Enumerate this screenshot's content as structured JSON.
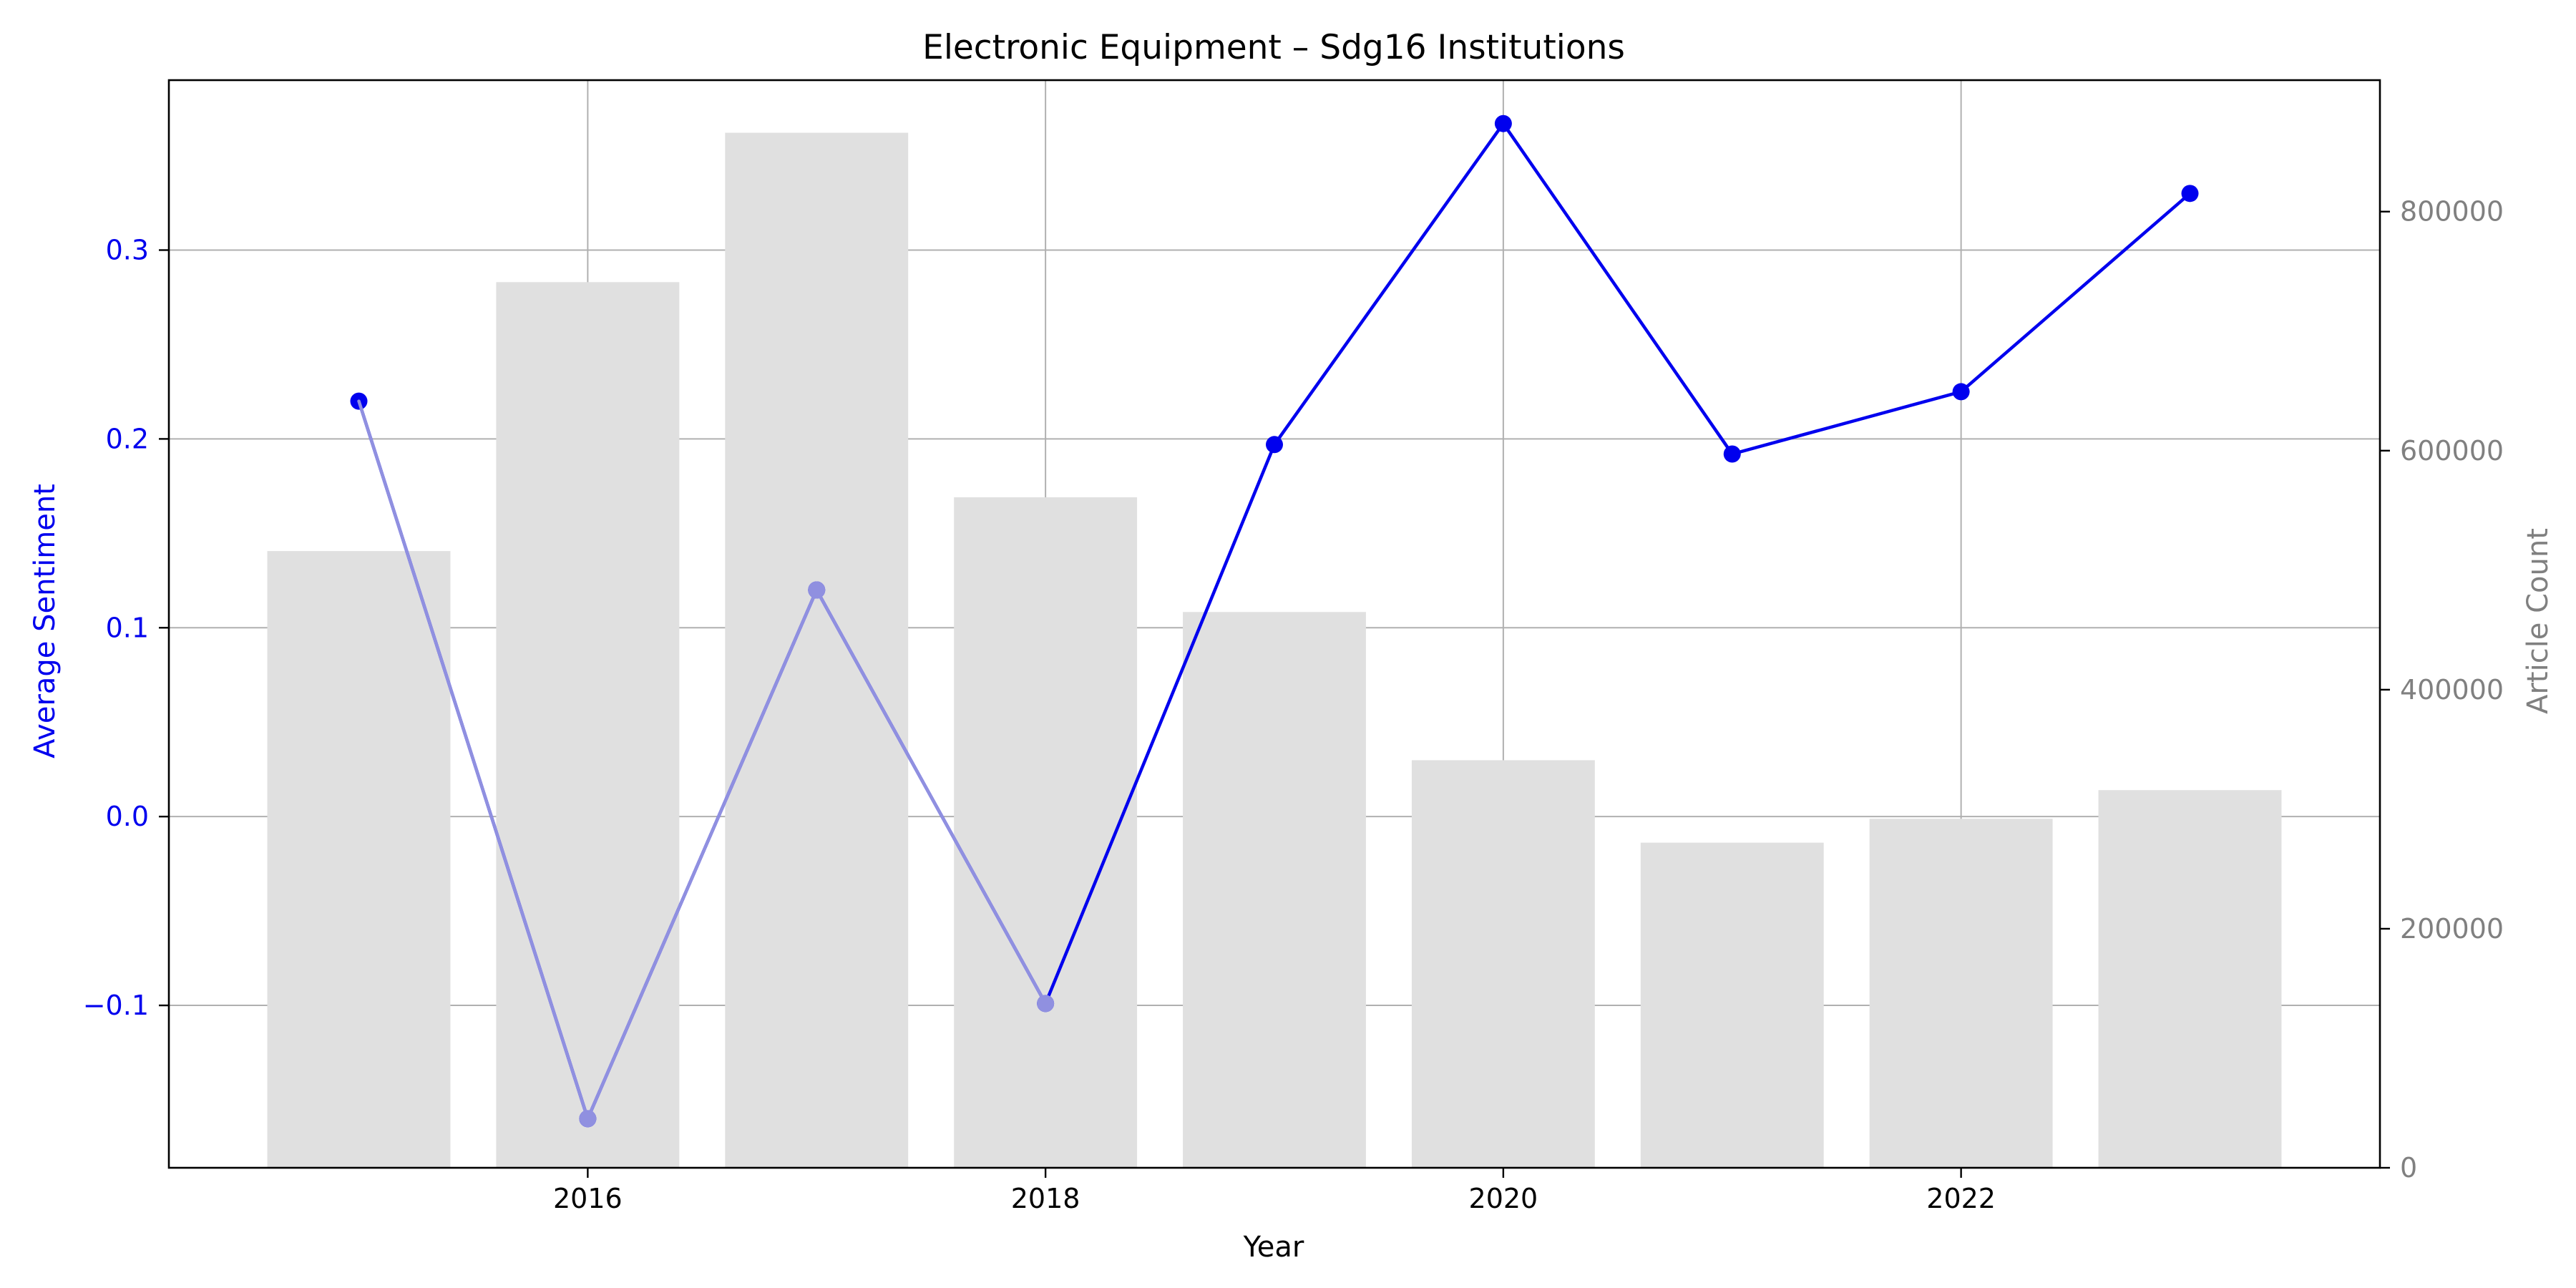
{
  "chart_data": {
    "type": "bar",
    "title": "Electronic Equipment – Sdg16 Institutions",
    "xlabel": "Year",
    "ylabel_left": "Average Sentiment",
    "ylabel_right": "Article Count",
    "x": [
      2015,
      2016,
      2017,
      2018,
      2019,
      2020,
      2021,
      2022,
      2023
    ],
    "xlim": [
      2014.17,
      2023.83
    ],
    "x_ticks": [
      2016,
      2018,
      2020,
      2022
    ],
    "x_tick_labels": [
      "2016",
      "2018",
      "2020",
      "2022"
    ],
    "sentiment": {
      "axis": "left",
      "type": "line",
      "color": "#0000ee",
      "values": [
        0.22,
        -0.16,
        0.12,
        -0.099,
        0.197,
        0.367,
        0.192,
        0.225,
        0.33
      ],
      "ylim": [
        -0.186,
        0.39
      ],
      "ticks": [
        -0.1,
        0.0,
        0.1,
        0.2,
        0.3
      ],
      "tick_labels": [
        "−0.1",
        "0.0",
        "0.1",
        "0.2",
        "0.3"
      ]
    },
    "article_count": {
      "axis": "right",
      "type": "bar",
      "color": "#e0e0e0",
      "values": [
        516000,
        741000,
        866000,
        561000,
        465000,
        341000,
        272000,
        292000,
        316000
      ],
      "ylim": [
        0,
        910000
      ],
      "ticks": [
        0,
        200000,
        400000,
        600000,
        800000
      ],
      "tick_labels": [
        "0",
        "200000",
        "400000",
        "600000",
        "800000"
      ]
    },
    "grid": true,
    "left_axis_color": "#0000ee",
    "right_axis_color": "#808080",
    "line_overlay_color": "#9090e0"
  }
}
